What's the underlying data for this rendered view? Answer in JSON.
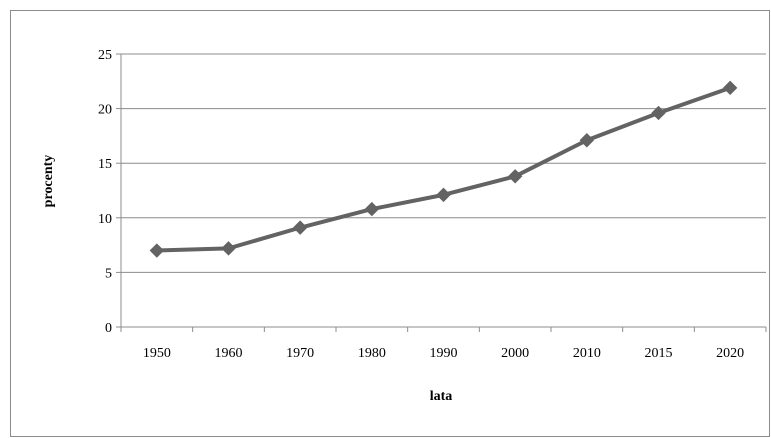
{
  "chart_data": {
    "type": "line",
    "title": "",
    "xlabel": "lata",
    "ylabel": "procenty",
    "categories": [
      "1950",
      "1960",
      "1970",
      "1980",
      "1990",
      "2000",
      "2010",
      "2015",
      "2020"
    ],
    "series": [
      {
        "values": [
          7.0,
          7.2,
          9.1,
          10.8,
          12.1,
          13.8,
          17.1,
          19.6,
          21.9
        ]
      }
    ],
    "ylim": [
      0,
      25
    ],
    "yticks": [
      "0",
      "5",
      "10",
      "15",
      "20",
      "25"
    ],
    "grid": "horizontal",
    "legend": "none",
    "colors": {
      "series": "#636363",
      "grid": "#8c8c8c",
      "axis": "#8c8c8c",
      "frame": "#8c8c8c"
    }
  }
}
